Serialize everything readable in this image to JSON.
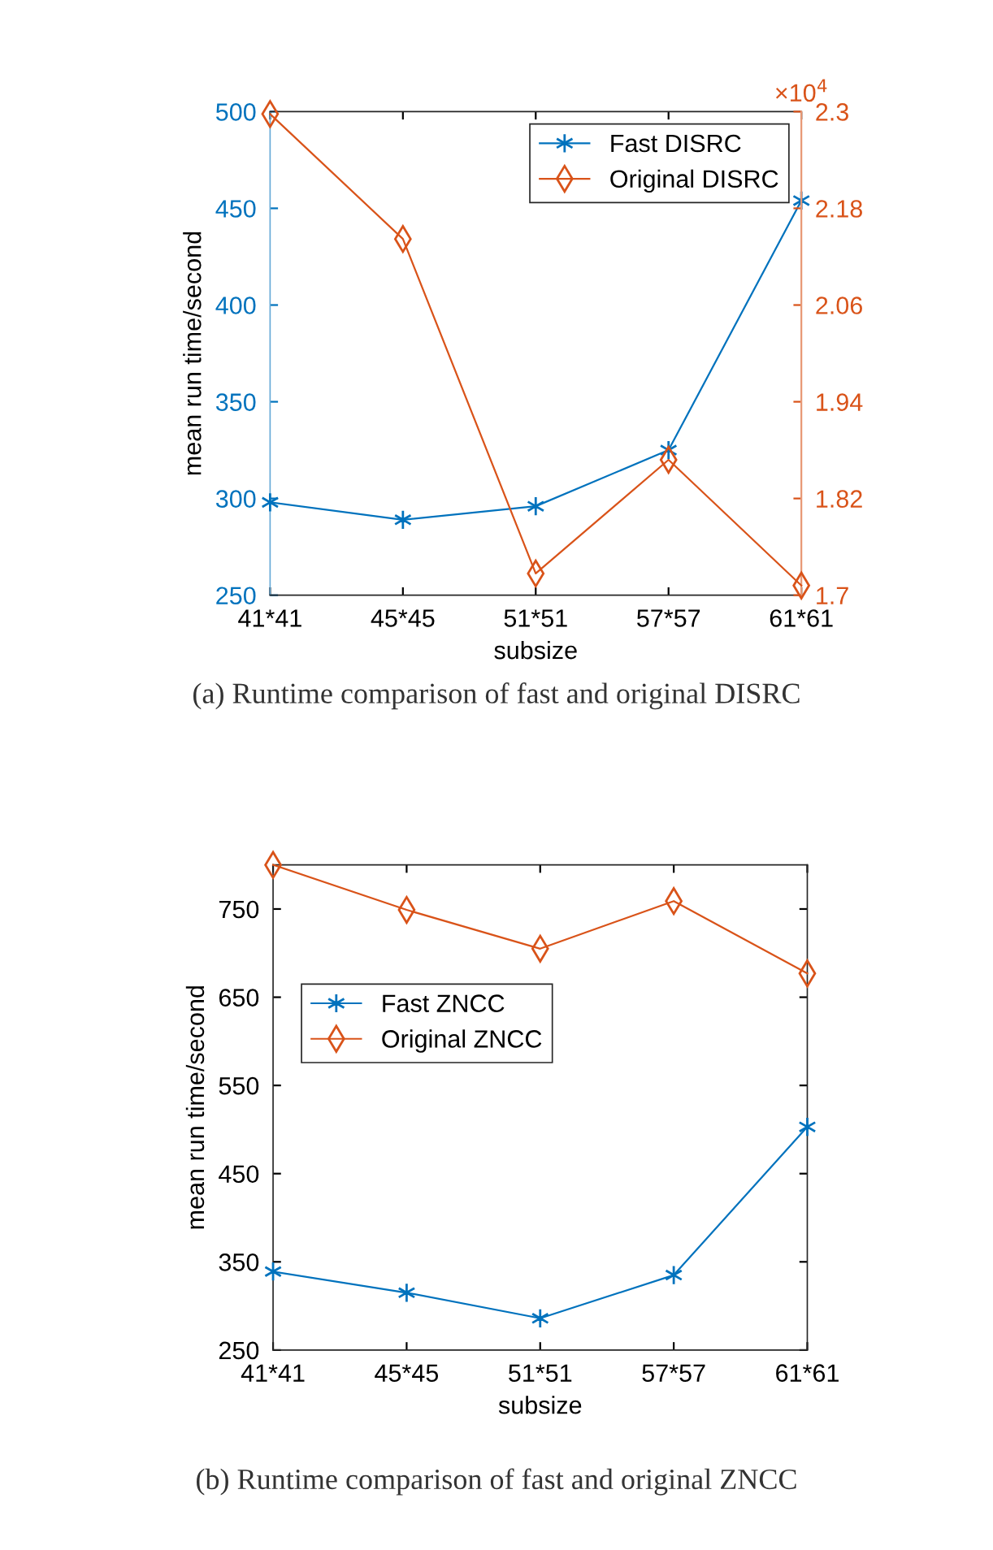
{
  "chart_data": [
    {
      "type": "line",
      "xlabel": "subsize",
      "ylabel": "mean run time/second",
      "categories": [
        "41*41",
        "45*45",
        "51*51",
        "57*57",
        "61*61"
      ],
      "ylim": [
        250,
        500
      ],
      "yticks": [
        250,
        300,
        350,
        400,
        450,
        500
      ],
      "y2lim": [
        1.7,
        2.3
      ],
      "y2ticks": [
        1.7,
        1.82,
        1.94,
        2.06,
        2.18,
        2.3
      ],
      "series": [
        {
          "name": "Fast DISRC",
          "color": "#0072bd",
          "marker": "cross",
          "values": [
            298,
            289,
            296,
            325,
            454
          ]
        },
        {
          "name": "Original DISRC",
          "color": "#d95319",
          "marker": "diamond",
          "axis": "y2",
          "values": [
            2.297,
            2.142,
            1.727,
            1.868,
            1.712
          ]
        }
      ],
      "legend": "top right",
      "line_style": "solid",
      "annotations": [
        "×10$^{4}$",
        "(a) Runtime comparison of fast and original DISRC"
      ]
    },
    {
      "type": "line",
      "xlabel": "subsize",
      "ylabel": "mean run time/second",
      "categories": [
        "41*41",
        "45*45",
        "51*51",
        "57*57",
        "61*61"
      ],
      "ylim": [
        250,
        800
      ],
      "yticks": [
        250,
        350,
        450,
        550,
        650,
        750
      ],
      "series": [
        {
          "name": "Fast ZNCC",
          "color": "#0072bd",
          "marker": "cross",
          "values": [
            339,
            315,
            286,
            335,
            503
          ]
        },
        {
          "name": "Original ZNCC",
          "color": "#d95319",
          "marker": "diamond",
          "values": [
            800,
            749,
            705,
            759,
            677
          ]
        }
      ],
      "legend": "top left",
      "line_style": "solid",
      "annotations": [
        "(b) Runtime comparison of fast and original ZNCC"
      ]
    }
  ]
}
